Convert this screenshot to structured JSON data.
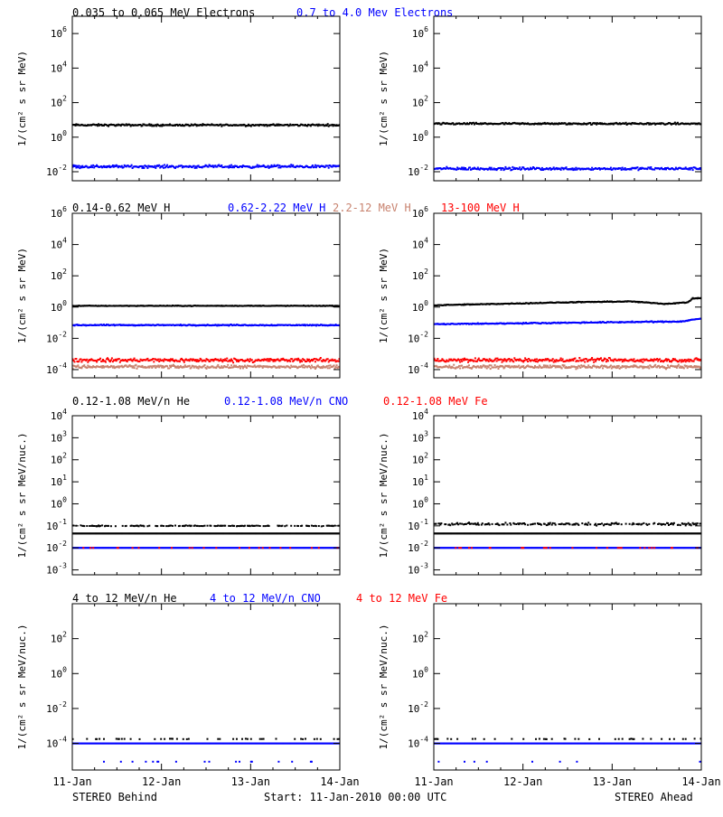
{
  "colors": {
    "black": "#000000",
    "blue": "#0000ff",
    "tan": "#c8826e",
    "red": "#ff0000"
  },
  "footer": {
    "left": "STEREO Behind",
    "center": "Start: 11-Jan-2010 00:00 UTC",
    "right": "STEREO Ahead"
  },
  "x_tick_labels": [
    "11-Jan",
    "12-Jan",
    "13-Jan",
    "14-Jan"
  ],
  "rows": [
    {
      "legend": [
        {
          "text": "0.035 to 0.065 MeV Electrons",
          "color": "black"
        },
        {
          "text": "0.7 to 4.0 Mev Electrons",
          "color": "blue"
        }
      ]
    },
    {
      "legend": [
        {
          "text": "0.14-0.62 MeV H",
          "color": "black"
        },
        {
          "text": "0.62-2.22 MeV H",
          "color": "blue"
        },
        {
          "text": "2.2-12 MeV H",
          "color": "tan"
        },
        {
          "text": "13-100 MeV H",
          "color": "red"
        }
      ]
    },
    {
      "legend": [
        {
          "text": "0.12-1.08 MeV/n He",
          "color": "black"
        },
        {
          "text": "0.12-1.08 MeV/n CNO",
          "color": "blue"
        },
        {
          "text": "0.12-1.08 MeV Fe",
          "color": "red"
        }
      ]
    },
    {
      "legend": [
        {
          "text": "4 to 12 MeV/n He",
          "color": "black"
        },
        {
          "text": "4 to 12 MeV/n CNO",
          "color": "blue"
        },
        {
          "text": "4 to 12 MeV Fe",
          "color": "red"
        }
      ]
    }
  ],
  "chart_data": [
    {
      "type": "scatter",
      "panel": "electrons-behind",
      "log_y": true,
      "ylabel": "1/(cm² s sr MeV)",
      "xlim_days": [
        0,
        3
      ],
      "ylim": [
        0.003,
        10000000
      ],
      "y_ticks": [
        {
          "exp": 6
        },
        {
          "exp": 4
        },
        {
          "exp": 2
        },
        {
          "exp": 0
        },
        {
          "exp": -2
        }
      ],
      "series": [
        {
          "name": "0.035 to 0.065 MeV Electrons",
          "color": "black",
          "level": 5,
          "spread": 0.08,
          "density": 1.0
        },
        {
          "name": "0.7 to 4.0 Mev Electrons",
          "color": "blue",
          "level": 0.02,
          "spread": 0.12,
          "density": 1.0
        }
      ]
    },
    {
      "type": "scatter",
      "panel": "electrons-ahead",
      "log_y": true,
      "ylabel": "1/(cm² s sr MeV)",
      "xlim_days": [
        0,
        3
      ],
      "ylim": [
        0.003,
        10000000
      ],
      "y_ticks": [
        {
          "exp": 6
        },
        {
          "exp": 4
        },
        {
          "exp": 2
        },
        {
          "exp": 0
        },
        {
          "exp": -2
        }
      ],
      "series": [
        {
          "name": "0.035 to 0.065 MeV Electrons",
          "color": "black",
          "level": 6,
          "spread": 0.08,
          "density": 1.0
        },
        {
          "name": "0.7 to 4.0 Mev Electrons",
          "color": "blue",
          "level": 0.015,
          "spread": 0.12,
          "density": 1.0
        }
      ]
    },
    {
      "type": "scatter",
      "panel": "protons-behind",
      "log_y": true,
      "ylabel": "1/(cm² s sr MeV)",
      "xlim_days": [
        0,
        3
      ],
      "ylim": [
        3e-05,
        1000000
      ],
      "y_ticks": [
        {
          "exp": 6
        },
        {
          "exp": 4
        },
        {
          "exp": 2
        },
        {
          "exp": 0
        },
        {
          "exp": -2
        },
        {
          "exp": -4
        }
      ],
      "series": [
        {
          "name": "0.14-0.62 MeV H",
          "color": "black",
          "level": 1.2,
          "spread": 0.03,
          "density": 1.0
        },
        {
          "name": "0.62-2.22 MeV H",
          "color": "blue",
          "level": 0.07,
          "spread": 0.05,
          "density": 1.0
        },
        {
          "name": "2.2-12 MeV H",
          "color": "tan",
          "level": 0.00015,
          "spread": 0.15,
          "density": 1.0
        },
        {
          "name": "13-100 MeV H",
          "color": "red",
          "level": 0.0004,
          "spread": 0.18,
          "density": 1.0
        }
      ]
    },
    {
      "type": "scatter",
      "panel": "protons-ahead",
      "log_y": true,
      "ylabel": "1/(cm² s sr MeV)",
      "xlim_days": [
        0,
        3
      ],
      "ylim": [
        3e-05,
        1000000
      ],
      "y_ticks": [
        {
          "exp": 6
        },
        {
          "exp": 4
        },
        {
          "exp": 2
        },
        {
          "exp": 0
        },
        {
          "exp": -2
        },
        {
          "exp": -4
        }
      ],
      "series": [
        {
          "name": "0.14-0.62 MeV H",
          "color": "black",
          "level": 1.5,
          "spread": 0.04,
          "density": 1.0,
          "trend": [
            [
              0,
              1.3
            ],
            [
              1.5,
              2.0
            ],
            [
              2.2,
              2.3
            ],
            [
              2.6,
              1.6
            ],
            [
              2.85,
              2.0
            ],
            [
              2.9,
              3.5
            ],
            [
              3.0,
              3.8
            ]
          ]
        },
        {
          "name": "0.62-2.22 MeV H",
          "color": "blue",
          "level": 0.09,
          "spread": 0.05,
          "density": 1.0,
          "trend": [
            [
              0,
              0.08
            ],
            [
              2.8,
              0.12
            ],
            [
              2.9,
              0.16
            ],
            [
              3.0,
              0.18
            ]
          ]
        },
        {
          "name": "2.2-12 MeV H",
          "color": "tan",
          "level": 0.00015,
          "spread": 0.15,
          "density": 1.0
        },
        {
          "name": "13-100 MeV H",
          "color": "red",
          "level": 0.0004,
          "spread": 0.18,
          "density": 1.0
        }
      ]
    },
    {
      "type": "scatter",
      "panel": "lowE-ions-behind",
      "log_y": true,
      "ylabel": "1/(cm² s sr MeV/nuc.)",
      "xlim_days": [
        0,
        3
      ],
      "ylim": [
        0.0006,
        10000
      ],
      "y_ticks": [
        {
          "exp": 4
        },
        {
          "exp": 3
        },
        {
          "exp": 2
        },
        {
          "exp": 1
        },
        {
          "exp": 0
        },
        {
          "exp": -1
        },
        {
          "exp": -2
        },
        {
          "exp": -3
        }
      ],
      "series": [
        {
          "name": "0.12-1.08 MeV/n He",
          "color": "black",
          "level": 0.045,
          "spread": 0.0,
          "density": 1.0
        },
        {
          "name": "0.12-1.08 MeV/n He (upper)",
          "color": "black",
          "level": 0.1,
          "spread": 0.03,
          "density": 0.45
        },
        {
          "name": "0.12-1.08 MeV/n CNO",
          "color": "blue",
          "level": 0.01,
          "spread": 0.0,
          "density": 1.0
        },
        {
          "name": "0.12-1.08 MeV Fe",
          "color": "red",
          "level": 0.01,
          "spread": 0.0,
          "density": 0.12
        }
      ]
    },
    {
      "type": "scatter",
      "panel": "lowE-ions-ahead",
      "log_y": true,
      "ylabel": "1/(cm² s sr MeV/nuc.)",
      "xlim_days": [
        0,
        3
      ],
      "ylim": [
        0.0006,
        10000
      ],
      "y_ticks": [
        {
          "exp": 4
        },
        {
          "exp": 3
        },
        {
          "exp": 2
        },
        {
          "exp": 1
        },
        {
          "exp": 0
        },
        {
          "exp": -1
        },
        {
          "exp": -2
        },
        {
          "exp": -3
        }
      ],
      "series": [
        {
          "name": "0.12-1.08 MeV/n He",
          "color": "black",
          "level": 0.045,
          "spread": 0.0,
          "density": 1.0
        },
        {
          "name": "0.12-1.08 MeV/n He (upper)",
          "color": "black",
          "level": 0.12,
          "spread": 0.08,
          "density": 0.6
        },
        {
          "name": "0.12-1.08 MeV/n CNO",
          "color": "blue",
          "level": 0.01,
          "spread": 0.0,
          "density": 1.0
        },
        {
          "name": "0.12-1.08 MeV Fe",
          "color": "red",
          "level": 0.01,
          "spread": 0.0,
          "density": 0.1
        }
      ]
    },
    {
      "type": "scatter",
      "panel": "highE-ions-behind",
      "log_y": true,
      "ylabel": "1/(cm² s sr MeV/nuc.)",
      "xlim_days": [
        0,
        3
      ],
      "ylim": [
        3e-06,
        10000
      ],
      "y_ticks": [
        {
          "exp": 2
        },
        {
          "exp": 0
        },
        {
          "exp": -2
        },
        {
          "exp": -4
        }
      ],
      "series": [
        {
          "name": "4 to 12 MeV/n He",
          "color": "black",
          "level": 0.00018,
          "spread": 0.02,
          "density": 0.15
        },
        {
          "name": "4 to 12 MeV/n CNO",
          "color": "blue",
          "level": 0.0001,
          "spread": 0.0,
          "density": 1.0
        },
        {
          "name": "4 to 12 MeV/n CNO (low)",
          "color": "blue",
          "level": 9e-06,
          "spread": 0.0,
          "density": 0.05
        }
      ]
    },
    {
      "type": "scatter",
      "panel": "highE-ions-ahead",
      "log_y": true,
      "ylabel": "1/(cm² s sr MeV/nuc.)",
      "xlim_days": [
        0,
        3
      ],
      "ylim": [
        3e-06,
        10000
      ],
      "y_ticks": [
        {
          "exp": 2
        },
        {
          "exp": 0
        },
        {
          "exp": -2
        },
        {
          "exp": -4
        }
      ],
      "series": [
        {
          "name": "4 to 12 MeV/n He",
          "color": "black",
          "level": 0.00018,
          "spread": 0.02,
          "density": 0.12
        },
        {
          "name": "4 to 12 MeV/n CNO",
          "color": "blue",
          "level": 0.0001,
          "spread": 0.0,
          "density": 1.0
        },
        {
          "name": "4 to 12 MeV/n CNO (low)",
          "color": "blue",
          "level": 9e-06,
          "spread": 0.0,
          "density": 0.04
        }
      ]
    }
  ]
}
